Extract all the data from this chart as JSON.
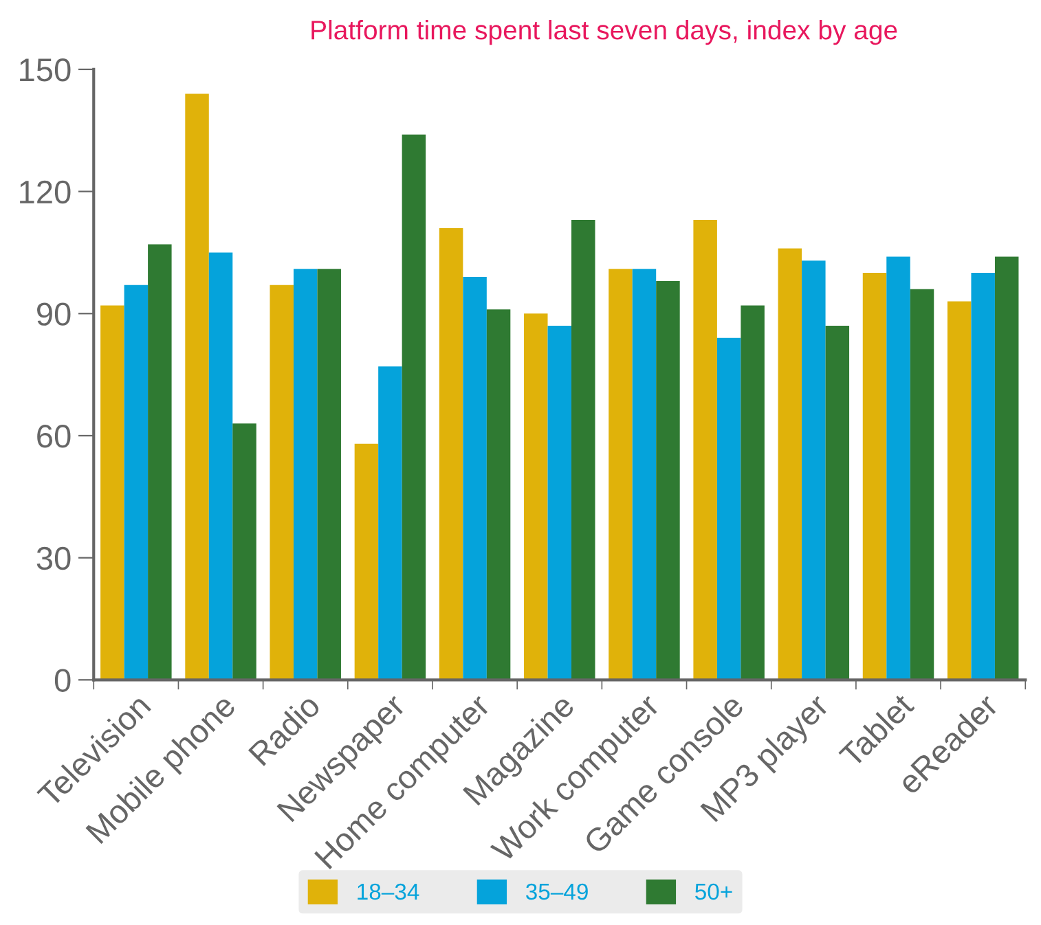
{
  "chart_data": {
    "type": "bar",
    "title": "Platform time spent last seven days, index by age",
    "categories": [
      "Television",
      "Mobile phone",
      "Radio",
      "Newspaper",
      "Home computer",
      "Magazine",
      "Work computer",
      "Game console",
      "MP3 player",
      "Tablet",
      "eReader"
    ],
    "series": [
      {
        "name": "18–34",
        "color": "#e0b20a",
        "values": [
          92,
          144,
          97,
          58,
          111,
          90,
          101,
          113,
          106,
          100,
          93
        ]
      },
      {
        "name": "35–49",
        "color": "#05a3db",
        "values": [
          97,
          105,
          101,
          77,
          99,
          87,
          101,
          84,
          103,
          104,
          100
        ]
      },
      {
        "name": "50+",
        "color": "#2f7a32",
        "values": [
          107,
          63,
          101,
          134,
          91,
          113,
          98,
          92,
          87,
          96,
          104
        ]
      }
    ],
    "ylim": [
      0,
      150
    ],
    "yticks": [
      0,
      30,
      60,
      90,
      120,
      150
    ],
    "grid": false,
    "legend": "bottom"
  }
}
